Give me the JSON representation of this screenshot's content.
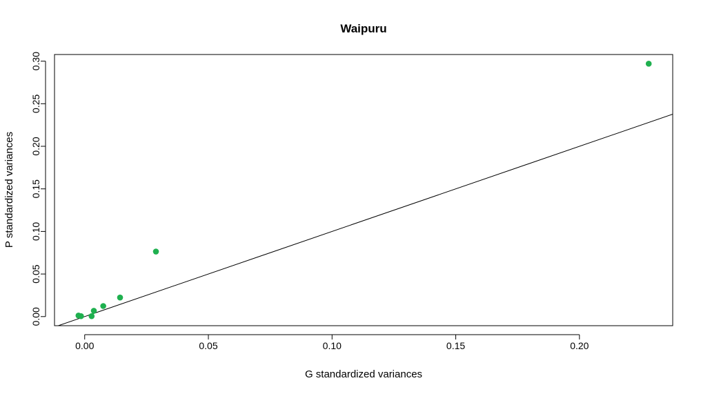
{
  "chart_data": {
    "type": "scatter",
    "title": "Waipuru",
    "xlabel": "G standardized variances",
    "ylabel": "P standardized variances",
    "xlim": [
      -0.0122,
      0.2377
    ],
    "ylim": [
      -0.0107,
      0.3078
    ],
    "x_ticks": [
      0.0,
      0.05,
      0.1,
      0.15,
      0.2
    ],
    "x_tick_labels": [
      "0.00",
      "0.05",
      "0.10",
      "0.15",
      "0.20"
    ],
    "y_ticks": [
      0.0,
      0.05,
      0.1,
      0.15,
      0.2,
      0.25,
      0.3
    ],
    "y_tick_labels": [
      "0.00",
      "0.05",
      "0.10",
      "0.15",
      "0.20",
      "0.25",
      "0.30"
    ],
    "point_color": "#1fb04f",
    "grid": false,
    "reference_line": {
      "intercept": 0,
      "slope": 1
    },
    "points": [
      {
        "x": -0.0025,
        "y": 0.0012
      },
      {
        "x": -0.0015,
        "y": 0.0005
      },
      {
        "x": 0.0028,
        "y": 0.0005
      },
      {
        "x": 0.0037,
        "y": 0.0068
      },
      {
        "x": 0.0075,
        "y": 0.0124
      },
      {
        "x": 0.0143,
        "y": 0.0224
      },
      {
        "x": 0.0288,
        "y": 0.0764
      },
      {
        "x": 0.228,
        "y": 0.297
      }
    ]
  }
}
